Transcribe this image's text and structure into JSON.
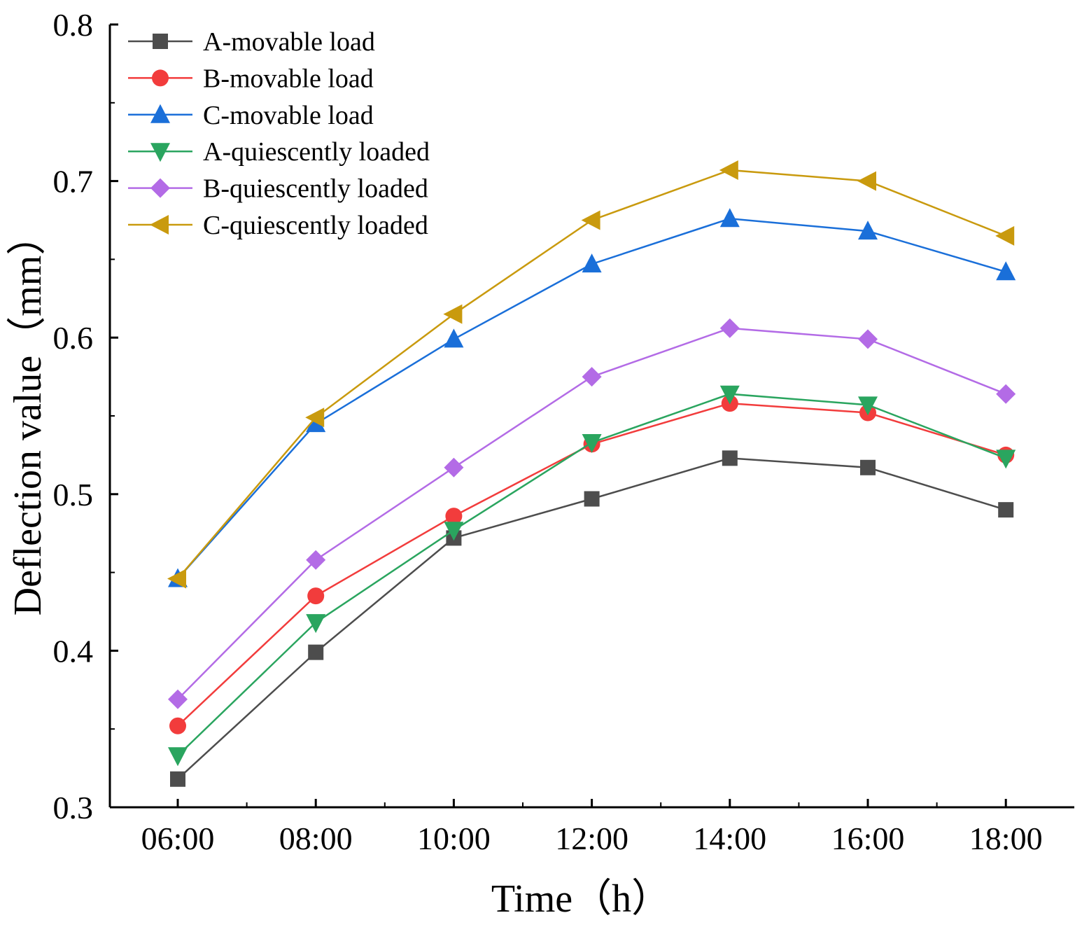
{
  "chart_data": {
    "type": "line",
    "title": "",
    "xlabel": "Time（h）",
    "ylabel": "Deflection value（mm）",
    "categories": [
      "06:00",
      "08:00",
      "10:00",
      "12:00",
      "14:00",
      "16:00",
      "18:00"
    ],
    "ylim": [
      0.3,
      0.8
    ],
    "yticks": [
      "0.3",
      "0.4",
      "0.5",
      "0.6",
      "0.7",
      "0.8"
    ],
    "grid": false,
    "legend_position": "top-left",
    "series": [
      {
        "name": "A-movable load",
        "marker": "square",
        "color": "#4d4d4d",
        "values": [
          0.318,
          0.399,
          0.472,
          0.497,
          0.523,
          0.517,
          0.49
        ]
      },
      {
        "name": "B-movable load",
        "marker": "circle",
        "color": "#f23c3c",
        "values": [
          0.352,
          0.435,
          0.486,
          0.532,
          0.558,
          0.552,
          0.525
        ]
      },
      {
        "name": "C-movable load",
        "marker": "triangle-up",
        "color": "#1a6fd9",
        "values": [
          0.446,
          0.545,
          0.599,
          0.647,
          0.676,
          0.668,
          0.642
        ]
      },
      {
        "name": "A-quiescently loaded",
        "marker": "triangle-down",
        "color": "#2aa55f",
        "values": [
          0.333,
          0.418,
          0.477,
          0.533,
          0.564,
          0.557,
          0.523
        ]
      },
      {
        "name": "B-quiescently loaded",
        "marker": "diamond",
        "color": "#b36be6",
        "values": [
          0.369,
          0.458,
          0.517,
          0.575,
          0.606,
          0.599,
          0.564
        ]
      },
      {
        "name": "C-quiescently loaded",
        "marker": "triangle-left",
        "color": "#c99a0e",
        "values": [
          0.446,
          0.549,
          0.615,
          0.675,
          0.707,
          0.7,
          0.665
        ]
      }
    ]
  }
}
